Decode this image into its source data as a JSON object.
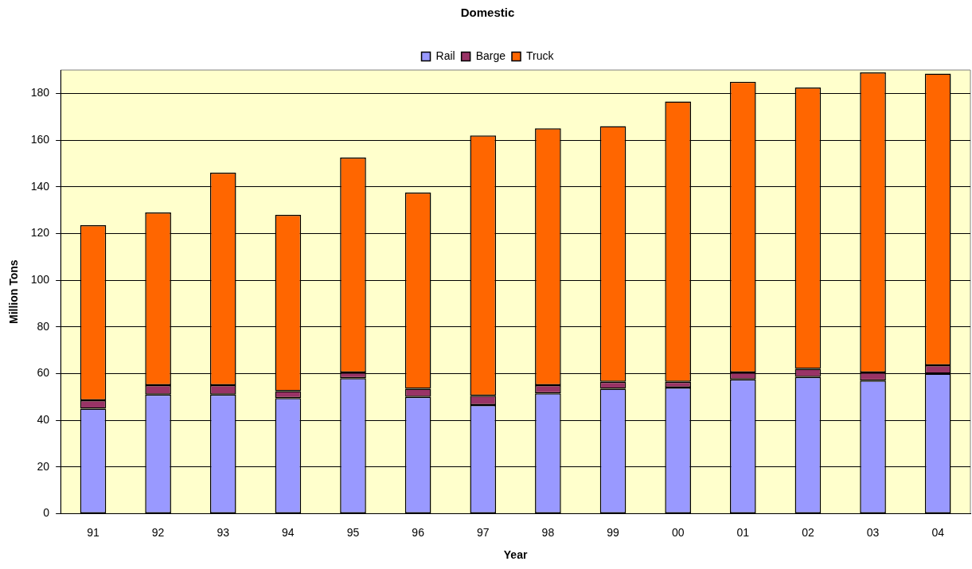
{
  "chart_data": {
    "type": "bar",
    "title": "Domestic",
    "xlabel": "Year",
    "ylabel": "Million Tons",
    "stacked": true,
    "grid": "y",
    "legend": "top",
    "categories": [
      "91",
      "92",
      "93",
      "94",
      "95",
      "96",
      "97",
      "98",
      "99",
      "00",
      "01",
      "02",
      "03",
      "04"
    ],
    "series": [
      {
        "name": "Rail",
        "color": "#9999ff",
        "values": [
          45,
          51,
          51,
          49.5,
          58,
          50,
          46.5,
          51.5,
          53.5,
          54,
          57.5,
          58.5,
          57,
          60
        ]
      },
      {
        "name": "Barge",
        "color": "#993366",
        "values": [
          3.5,
          4,
          4,
          3,
          2.5,
          3.5,
          4,
          3.5,
          3,
          2.5,
          3,
          3.5,
          3.5,
          3.5
        ]
      },
      {
        "name": "Truck",
        "color": "#ff6600",
        "values": [
          75,
          74,
          91,
          75.5,
          92,
          84,
          111.5,
          110,
          109.5,
          120,
          124.5,
          120.5,
          128.5,
          125
        ]
      }
    ],
    "ylim": [
      0,
      190
    ],
    "yticks": [
      0,
      20,
      40,
      60,
      80,
      100,
      120,
      140,
      160,
      180
    ]
  }
}
